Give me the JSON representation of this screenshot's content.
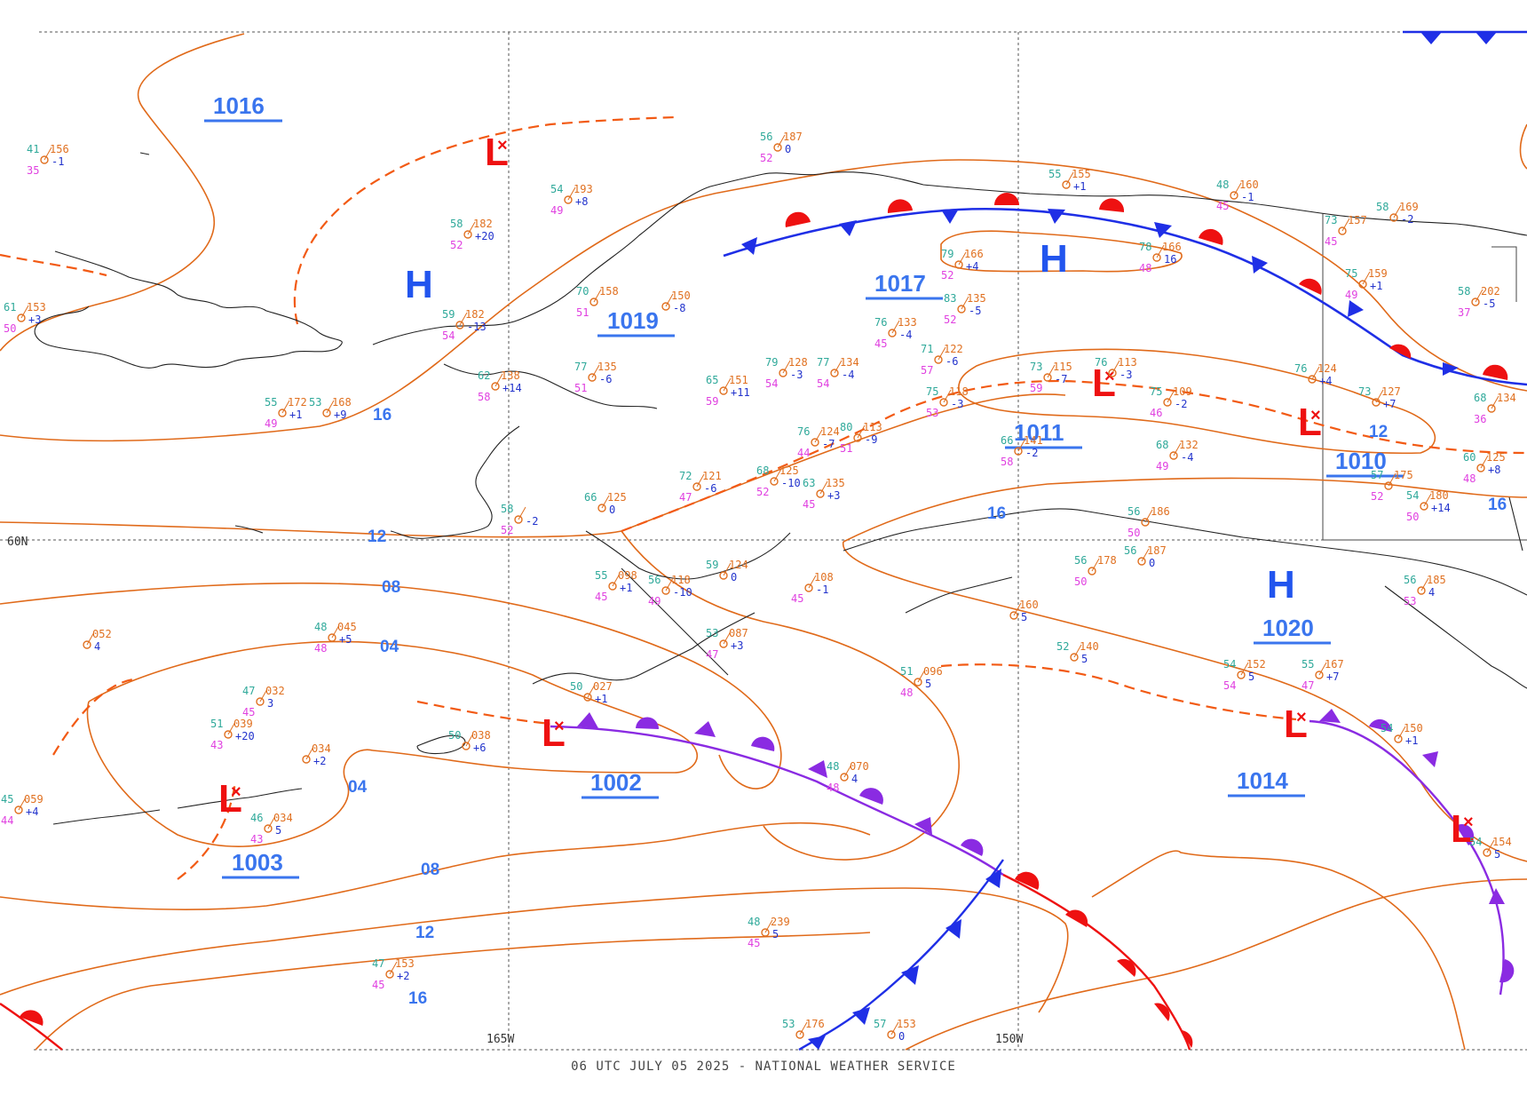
{
  "caption": "06 UTC JULY 05 2025 - NATIONAL WEATHER SERVICE",
  "grid_labels": {
    "lat_60": "60N",
    "lon_165": "165W",
    "lon_150": "150W"
  },
  "pressure_centers": [
    {
      "type": "H",
      "label": "1016"
    },
    {
      "type": "H",
      "label": "1019"
    },
    {
      "type": "H",
      "label": "1017"
    },
    {
      "type": "L",
      "label": "1011"
    },
    {
      "type": "L",
      "label": "1010"
    },
    {
      "type": "H",
      "label": "1020"
    },
    {
      "type": "L",
      "label": "1002"
    },
    {
      "type": "L",
      "label": "1003"
    },
    {
      "type": "L",
      "label": "1014"
    }
  ],
  "isobar_labels": [
    "16",
    "12",
    "08",
    "04",
    "04",
    "08",
    "12",
    "16",
    "16",
    "12",
    "16"
  ],
  "stations": [
    {
      "t": "41",
      "p": "156",
      "d": "35",
      "tend": "-1"
    },
    {
      "t": "61",
      "p": "153",
      "d": "50",
      "tend": "+3"
    },
    {
      "t": "58",
      "p": "182",
      "d": "52",
      "tend": "+20"
    },
    {
      "t": "54",
      "p": "193",
      "d": "49",
      "tend": "+8"
    },
    {
      "t": "56",
      "p": "187",
      "d": "52",
      "tend": "0"
    },
    {
      "t": "55",
      "p": "172",
      "d": "49",
      "tend": "+1"
    },
    {
      "t": "53",
      "p": "168",
      "d": "",
      "tend": "+9"
    },
    {
      "t": "59",
      "p": "182",
      "d": "54",
      "tend": "-13"
    },
    {
      "t": "62",
      "p": "138",
      "d": "58",
      "tend": "+14"
    },
    {
      "t": "77",
      "p": "135",
      "d": "51",
      "tend": "-6"
    },
    {
      "t": "70",
      "p": "158",
      "d": "51",
      "tend": ""
    },
    {
      "t": "",
      "p": "150",
      "d": "",
      "tend": "-8"
    },
    {
      "t": "65",
      "p": "151",
      "d": "59",
      "tend": "+11"
    },
    {
      "t": "79",
      "p": "128",
      "d": "54",
      "tend": "-3"
    },
    {
      "t": "77",
      "p": "134",
      "d": "54",
      "tend": "-4"
    },
    {
      "t": "76",
      "p": "133",
      "d": "45",
      "tend": "-4"
    },
    {
      "t": "83",
      "p": "135",
      "d": "52",
      "tend": "-5"
    },
    {
      "t": "79",
      "p": "166",
      "d": "52",
      "tend": "+4"
    },
    {
      "t": "78",
      "p": "166",
      "d": "48",
      "tend": "16"
    },
    {
      "t": "71",
      "p": "122",
      "d": "57",
      "tend": "-6"
    },
    {
      "t": "73",
      "p": "115",
      "d": "59",
      "tend": "-7"
    },
    {
      "t": "76",
      "p": "113",
      "d": "",
      "tend": "-3"
    },
    {
      "t": "75",
      "p": "118",
      "d": "53",
      "tend": "-3"
    },
    {
      "t": "75",
      "p": "109",
      "d": "46",
      "tend": "-2"
    },
    {
      "t": "76",
      "p": "124",
      "d": "44",
      "tend": "-7"
    },
    {
      "t": "80",
      "p": "113",
      "d": "51",
      "tend": "-9"
    },
    {
      "t": "72",
      "p": "121",
      "d": "47",
      "tend": "-6"
    },
    {
      "t": "68",
      "p": "125",
      "d": "52",
      "tend": "-10"
    },
    {
      "t": "63",
      "p": "135",
      "d": "45",
      "tend": "+3"
    },
    {
      "t": "66",
      "p": "141",
      "d": "58",
      "tend": "-2"
    },
    {
      "t": "68",
      "p": "132",
      "d": "49",
      "tend": "-4"
    },
    {
      "t": "57",
      "p": "175",
      "d": "52",
      "tend": ""
    },
    {
      "t": "54",
      "p": "180",
      "d": "50",
      "tend": "+14"
    },
    {
      "t": "60",
      "p": "125",
      "d": "48",
      "tend": "+8"
    },
    {
      "t": "73",
      "p": "127",
      "d": "",
      "tend": "+7"
    },
    {
      "t": "68",
      "p": "134",
      "d": "36",
      "tend": ""
    },
    {
      "t": "75",
      "p": "159",
      "d": "49",
      "tend": "+1"
    },
    {
      "t": "73",
      "p": "157",
      "d": "45",
      "tend": ""
    },
    {
      "t": "58",
      "p": "169",
      "d": "",
      "tend": "-2"
    },
    {
      "t": "48",
      "p": "160",
      "d": "45",
      "tend": "-1"
    },
    {
      "t": "58",
      "p": "202",
      "d": "37",
      "tend": "-5"
    },
    {
      "t": "76",
      "p": "124",
      "d": "",
      "tend": "+4"
    },
    {
      "t": "55",
      "p": "155",
      "d": "",
      "tend": "+1"
    },
    {
      "t": "66",
      "p": "125",
      "d": "",
      "tend": "0"
    },
    {
      "t": "58",
      "p": "",
      "d": "52",
      "tend": "-2"
    },
    {
      "t": "56",
      "p": "118",
      "d": "49",
      "tend": "-10"
    },
    {
      "t": "59",
      "p": "124",
      "d": "",
      "tend": "0"
    },
    {
      "t": "55",
      "p": "098",
      "d": "45",
      "tend": "+1"
    },
    {
      "t": "",
      "p": "108",
      "d": "45",
      "tend": "-1"
    },
    {
      "t": "53",
      "p": "087",
      "d": "47",
      "tend": "+3"
    },
    {
      "t": "48",
      "p": "045",
      "d": "48",
      "tend": "+5"
    },
    {
      "t": "",
      "p": "052",
      "d": "",
      "tend": "4"
    },
    {
      "t": "47",
      "p": "032",
      "d": "45",
      "tend": "3"
    },
    {
      "t": "51",
      "p": "039",
      "d": "43",
      "tend": "+20"
    },
    {
      "t": "",
      "p": "034",
      "d": "",
      "tend": "+2"
    },
    {
      "t": "45",
      "p": "059",
      "d": "44",
      "tend": "+4"
    },
    {
      "t": "46",
      "p": "034",
      "d": "43",
      "tend": "5"
    },
    {
      "t": "50",
      "p": "027",
      "d": "",
      "tend": "+1"
    },
    {
      "t": "50",
      "p": "038",
      "d": "",
      "tend": "+6"
    },
    {
      "t": "48",
      "p": "070",
      "d": "48",
      "tend": "4"
    },
    {
      "t": "51",
      "p": "096",
      "d": "48",
      "tend": "5"
    },
    {
      "t": "52",
      "p": "140",
      "d": "",
      "tend": "5"
    },
    {
      "t": "",
      "p": "160",
      "d": "",
      "tend": "5"
    },
    {
      "t": "54",
      "p": "152",
      "d": "54",
      "tend": "5"
    },
    {
      "t": "55",
      "p": "167",
      "d": "47",
      "tend": "+7"
    },
    {
      "t": "54",
      "p": "150",
      "d": "",
      "tend": "+1"
    },
    {
      "t": "56",
      "p": "187",
      "d": "",
      "tend": "0"
    },
    {
      "t": "56",
      "p": "178",
      "d": "50",
      "tend": ""
    },
    {
      "t": "56",
      "p": "186",
      "d": "50",
      "tend": ""
    },
    {
      "t": "56",
      "p": "185",
      "d": "53",
      "tend": "4"
    },
    {
      "t": "48",
      "p": "239",
      "d": "45",
      "tend": "5"
    },
    {
      "t": "47",
      "p": "153",
      "d": "45",
      "tend": "+2"
    },
    {
      "t": "53",
      "p": "176",
      "d": "",
      "tend": ""
    },
    {
      "t": "57",
      "p": "153",
      "d": "",
      "tend": "0"
    },
    {
      "t": "54",
      "p": "154",
      "d": "",
      "tend": "5"
    }
  ],
  "colors": {
    "isobar": "#e06a1a",
    "coast": "#222222",
    "cold_front": "#1f2fe6",
    "warm_front": "#ee1111",
    "occluded_front": "#8a2be2",
    "trough": "#f25a14",
    "center_label": "#2255ee",
    "low_symbol": "#ee1111",
    "temp": "#2fa99a",
    "pressure": "#e07020",
    "dewpoint": "#e040e0",
    "tendency": "#2233cc"
  }
}
